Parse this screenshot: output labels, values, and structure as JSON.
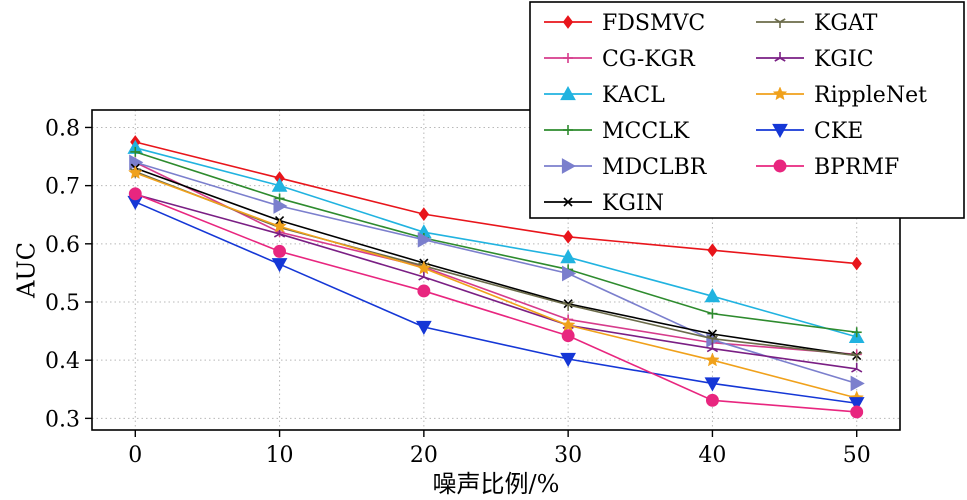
{
  "chart_data": {
    "type": "line",
    "xlabel": "噪声比例/%",
    "ylabel": "AUC",
    "x": [
      0,
      10,
      20,
      30,
      40,
      50
    ],
    "xlim": [
      -3,
      53
    ],
    "ylim": [
      0.28,
      0.83
    ],
    "xticks": [
      "0",
      "10",
      "20",
      "30",
      "40",
      "50"
    ],
    "yticks": [
      "0.3",
      "0.4",
      "0.5",
      "0.6",
      "0.7",
      "0.8"
    ],
    "grid": true,
    "legend_position": "top-right",
    "series": [
      {
        "name": "FDSMVC",
        "color": "#e8151b",
        "marker": "diamond",
        "values": [
          0.775,
          0.713,
          0.651,
          0.612,
          0.589,
          0.566
        ]
      },
      {
        "name": "CG-KGR",
        "color": "#d63c8c",
        "marker": "plus",
        "values": [
          0.74,
          0.62,
          0.56,
          0.47,
          0.43,
          0.41
        ]
      },
      {
        "name": "KACL",
        "color": "#21b3e0",
        "marker": "triangle-up",
        "values": [
          0.765,
          0.7,
          0.62,
          0.577,
          0.51,
          0.44
        ]
      },
      {
        "name": "MCCLK",
        "color": "#2e8b2e",
        "marker": "plus",
        "values": [
          0.758,
          0.678,
          0.61,
          0.556,
          0.48,
          0.448
        ]
      },
      {
        "name": "MDCLBR",
        "color": "#7b7fcd",
        "marker": "triangle-right",
        "values": [
          0.74,
          0.665,
          0.607,
          0.549,
          0.435,
          0.36
        ]
      },
      {
        "name": "KGIN",
        "color": "#000000",
        "marker": "x",
        "values": [
          0.73,
          0.64,
          0.567,
          0.497,
          0.445,
          0.408
        ]
      },
      {
        "name": "KGAT",
        "color": "#6b6b4a",
        "marker": "tri-down",
        "values": [
          0.724,
          0.628,
          0.562,
          0.495,
          0.437,
          0.408
        ]
      },
      {
        "name": "KGIC",
        "color": "#7a1f84",
        "marker": "tri-up",
        "values": [
          0.685,
          0.617,
          0.543,
          0.46,
          0.42,
          0.385
        ]
      },
      {
        "name": "RippleNet",
        "color": "#f0a11b",
        "marker": "star",
        "values": [
          0.722,
          0.63,
          0.558,
          0.46,
          0.4,
          0.335
        ]
      },
      {
        "name": "CKE",
        "color": "#1537d6",
        "marker": "triangle-down",
        "values": [
          0.672,
          0.565,
          0.457,
          0.402,
          0.36,
          0.326
        ]
      },
      {
        "name": "BPRMF",
        "color": "#e8267f",
        "marker": "circle",
        "values": [
          0.686,
          0.587,
          0.519,
          0.442,
          0.331,
          0.311
        ]
      }
    ]
  }
}
